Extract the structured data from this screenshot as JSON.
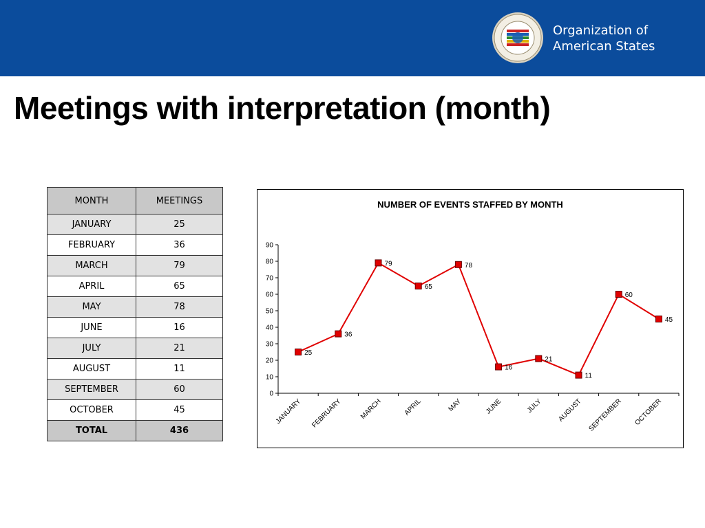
{
  "header": {
    "org_line1": "Organization of",
    "org_line2": "American States",
    "brand_color": "#0b4c9c"
  },
  "page": {
    "title": "Meetings with interpretation (month)"
  },
  "table": {
    "headers": [
      "MONTH",
      "MEETINGS"
    ],
    "rows": [
      [
        "JANUARY",
        "25"
      ],
      [
        "FEBRUARY",
        "36"
      ],
      [
        "MARCH",
        "79"
      ],
      [
        "APRIL",
        "65"
      ],
      [
        "MAY",
        "78"
      ],
      [
        "JUNE",
        "16"
      ],
      [
        "JULY",
        "21"
      ],
      [
        "AUGUST",
        "11"
      ],
      [
        "SEPTEMBER",
        "60"
      ],
      [
        "OCTOBER",
        "45"
      ]
    ],
    "total_label": "TOTAL",
    "total_value": "436"
  },
  "chart_data": {
    "type": "line",
    "title": "NUMBER OF EVENTS STAFFED BY MONTH",
    "categories": [
      "JANUARY",
      "FEBRUARY",
      "MARCH",
      "APRIL",
      "MAY",
      "JUNE",
      "JULY",
      "AUGUST",
      "SEPTEMBER",
      "OCTOBER"
    ],
    "series": [
      {
        "values": [
          25,
          36,
          79,
          65,
          78,
          16,
          21,
          11,
          60,
          45
        ],
        "color": "#e00000",
        "marker_color": "#e00000"
      }
    ],
    "ylim": [
      0,
      90
    ],
    "yticks": [
      0,
      10,
      20,
      30,
      40,
      50,
      60,
      70,
      80,
      90
    ],
    "xlabel": "",
    "ylabel": "",
    "grid": false,
    "data_labels": true
  }
}
